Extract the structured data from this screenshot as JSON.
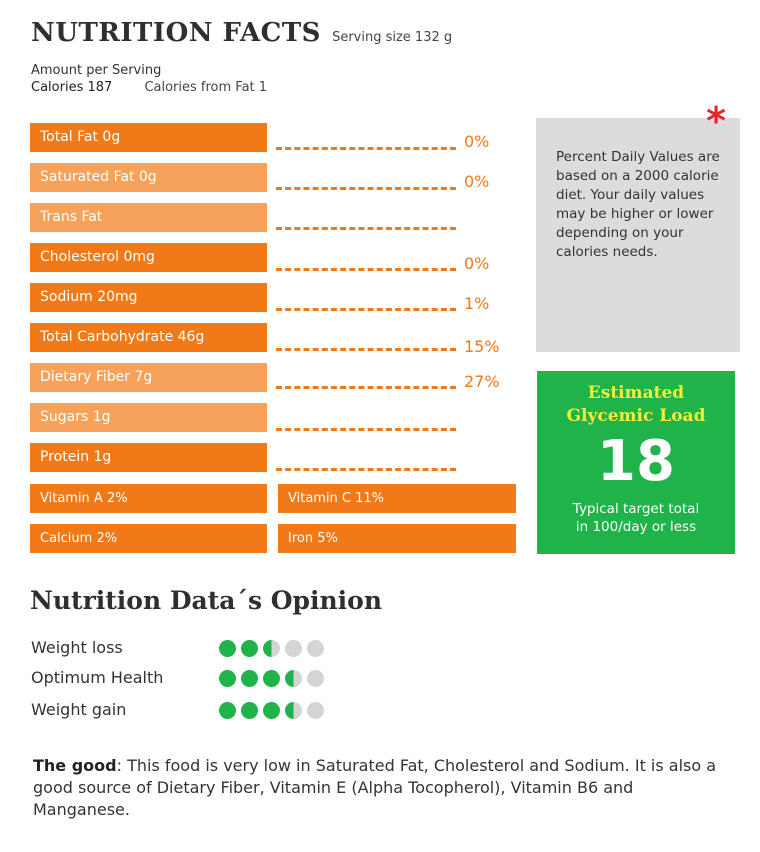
{
  "header": {
    "title": "NUTRITION FACTS",
    "serving": "Serving size 132 g"
  },
  "amount": {
    "label": "Amount per Serving",
    "calories": "Calories 187",
    "calories_from_fat": "Calories from Fat 1"
  },
  "nutrients": [
    {
      "label": "Total Fat 0g",
      "pct": "0%"
    },
    {
      "label": "Saturated Fat 0g",
      "pct": "0%"
    },
    {
      "label": "Trans Fat",
      "pct": ""
    },
    {
      "label": "Cholesterol 0mg",
      "pct": "0%"
    },
    {
      "label": "Sodium 20mg",
      "pct": "1%"
    },
    {
      "label": "Total Carbohydrate 46g",
      "pct": "15%"
    },
    {
      "label": "Dietary Fiber 7g",
      "pct": "27%"
    },
    {
      "label": "Sugars 1g",
      "pct": ""
    },
    {
      "label": "Protein 1g",
      "pct": ""
    }
  ],
  "vitamins": {
    "vitamin_a": "Vitamin A 2%",
    "vitamin_c": "Vitamin C 11%",
    "calcium": "Calcium 2%",
    "iron": "Iron 5%"
  },
  "note": {
    "symbol": "*",
    "text": "Percent Daily Values are based on a 2000 calorie diet. Your daily values may be higher or lower depending on your calories needs."
  },
  "glycemic": {
    "title_line1": "Estimated",
    "title_line2": "Glycemic Load",
    "value": "18",
    "sub_line1": "Typical target total",
    "sub_line2": "in 100/day or less"
  },
  "opinion": {
    "title": "Nutrition Data´s Opinion",
    "rows": [
      {
        "label": "Weight loss",
        "rating": 2.5,
        "max": 5
      },
      {
        "label": "Optimum Health",
        "rating": 3.5,
        "max": 5
      },
      {
        "label": "Weight gain",
        "rating": 3.5,
        "max": 5
      }
    ]
  },
  "summary": {
    "bold": "The good",
    "text": ": This food is very low in Saturated Fat, Cholesterol and Sodium. It is also a good source of Dietary Fiber, Vitamin E (Alpha Tocopherol), Vitamin B6 and Manganese."
  },
  "colors": {
    "orange": "#f07918",
    "light_orange": "#f6a25a",
    "green": "#1fb34a",
    "yellow": "#f3ee3a",
    "red": "#e8232b"
  }
}
